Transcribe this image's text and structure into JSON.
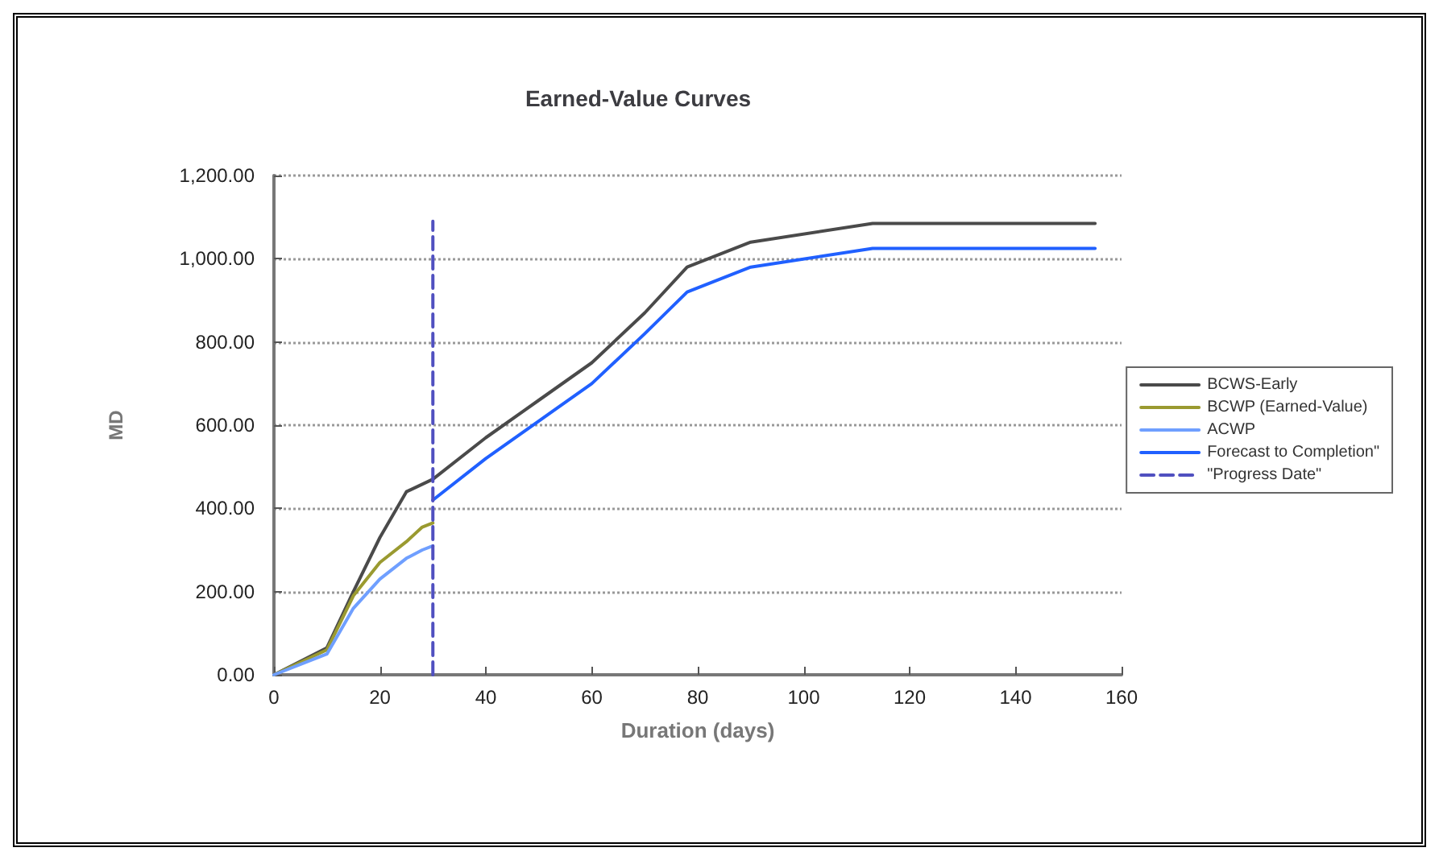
{
  "chart_data": {
    "type": "line",
    "title": "Earned-Value Curves",
    "xlabel": "Duration (days)",
    "ylabel": "MD",
    "xlim": [
      0,
      160
    ],
    "xticks": [
      0,
      20,
      40,
      60,
      80,
      100,
      120,
      140,
      160
    ],
    "ylim": [
      0,
      1200
    ],
    "yticks": [
      {
        "value": 0,
        "label": "0.00"
      },
      {
        "value": 200,
        "label": "200.00"
      },
      {
        "value": 400,
        "label": "400.00"
      },
      {
        "value": 600,
        "label": "600.00"
      },
      {
        "value": 800,
        "label": "800.00"
      },
      {
        "value": 1000,
        "label": "1,000.00"
      },
      {
        "value": 1200,
        "label": "1,200.00"
      }
    ],
    "grid": "y",
    "legend": "right",
    "marker": "none",
    "line_style": "solid",
    "series": [
      {
        "name": "BCWS-Early",
        "color": "#4a4a4a",
        "x": [
          0,
          10,
          15,
          20,
          25,
          30,
          40,
          50,
          60,
          70,
          78,
          90,
          113,
          155
        ],
        "values": [
          0,
          65,
          200,
          330,
          440,
          470,
          570,
          660,
          750,
          870,
          980,
          1040,
          1085,
          1085
        ]
      },
      {
        "name": "BCWP (Earned-Value)",
        "color": "#9a9a30",
        "x": [
          0,
          10,
          15,
          20,
          25,
          28,
          30
        ],
        "values": [
          0,
          60,
          190,
          270,
          320,
          355,
          365
        ]
      },
      {
        "name": "ACWP",
        "color": "#6f9fff",
        "x": [
          0,
          10,
          15,
          20,
          25,
          28,
          30
        ],
        "values": [
          0,
          50,
          160,
          230,
          280,
          300,
          310
        ]
      },
      {
        "name": "Forecast to Completion\"",
        "color": "#2060ff",
        "x": [
          30,
          40,
          50,
          60,
          70,
          78,
          90,
          113,
          155
        ],
        "values": [
          420,
          520,
          610,
          700,
          820,
          920,
          980,
          1025,
          1025
        ]
      },
      {
        "name": "\"Progress Date\"",
        "color": "#5050c0",
        "line_style": "dashed",
        "x": [
          30,
          30
        ],
        "values": [
          0,
          1090
        ]
      }
    ]
  }
}
